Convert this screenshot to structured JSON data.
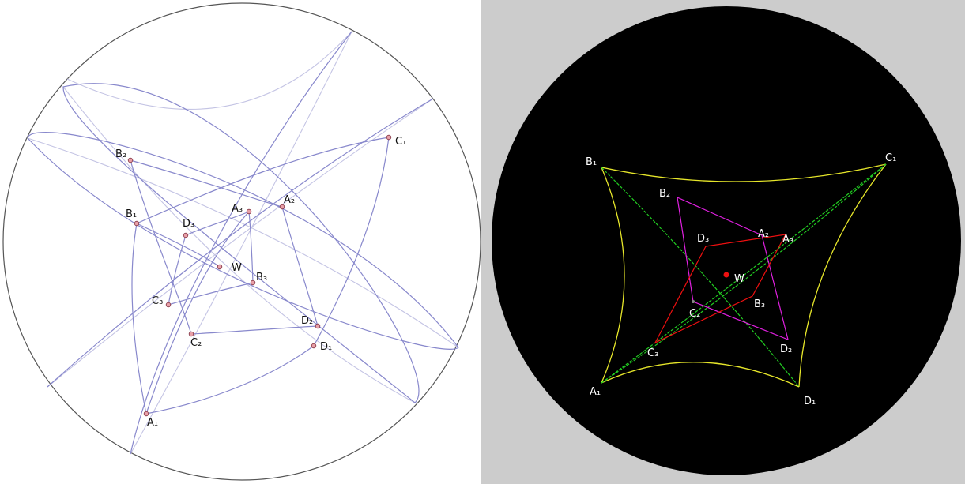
{
  "left": {
    "labels": {
      "B2": "B₂",
      "B1": "B₁",
      "A1": "A₁",
      "A2": "A₂",
      "A3": "A₃",
      "C1": "C₁",
      "C2": "C₂",
      "C3": "C₃",
      "D1": "D₁",
      "D2": "D₂",
      "D3": "D₃",
      "B3": "B₃",
      "W": "W"
    }
  },
  "right": {
    "labels": {
      "B1": "B₁",
      "C1": "C₁",
      "A1": "A₁",
      "D1": "D₁",
      "B2": "B₂",
      "A2": "A₂",
      "A3": "A₃",
      "C2": "C₂",
      "C3": "C₃",
      "D2": "D₂",
      "D3": "D₃",
      "B3": "B₃",
      "W": "W"
    }
  },
  "colors": {
    "curve": "#8888cc",
    "curve_light": "#c4c4e4",
    "point_fill": "#e8a0a8",
    "point_stroke": "#803040",
    "right_bg": "#cccccc",
    "disk": "#000000",
    "yellow": "#e6e62a",
    "green": "#22cc22",
    "magenta": "#e020e0",
    "red": "#ee1010"
  }
}
